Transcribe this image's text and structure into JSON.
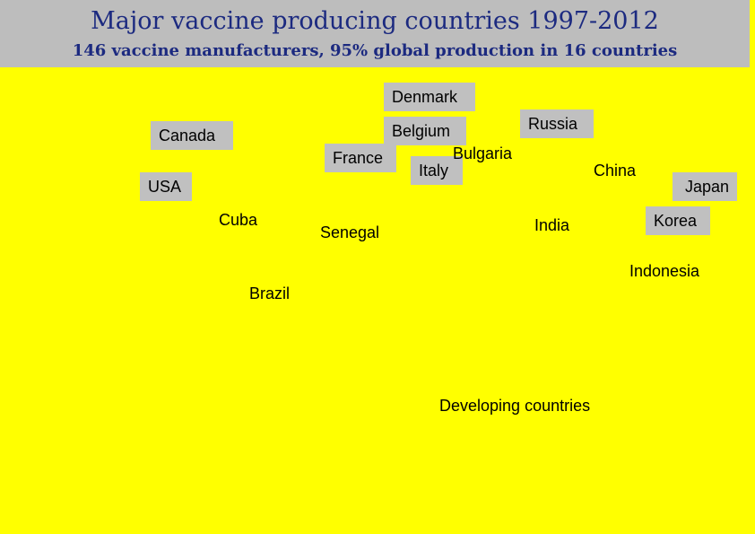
{
  "header": {
    "title": "Major vaccine producing countries 1997-2012",
    "subtitle": "146 vaccine manufacturers, 95% global production in 16 countries"
  },
  "labels": [
    "Denmark",
    "Canada",
    "Belgium",
    "Russia",
    "France",
    "Bulgaria",
    "Italy",
    "China",
    "USA",
    "Japan",
    "Cuba",
    "Senegal",
    "India",
    "Korea",
    "Indonesia",
    "Brazil",
    "Developing countries"
  ]
}
